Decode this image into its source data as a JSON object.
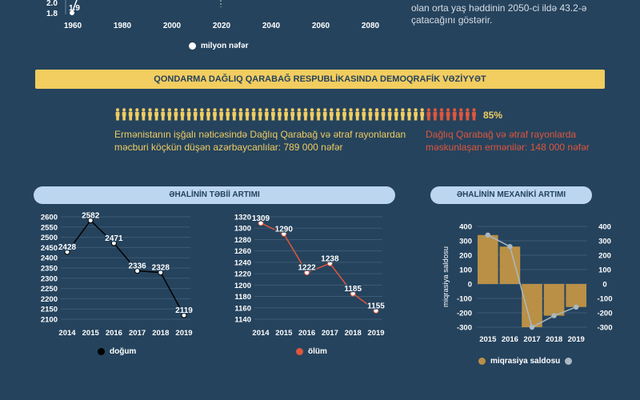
{
  "top": {
    "note": "olan orta yaş həddinin 2050-ci ildə 43.2-ə çatacağını göstərir.",
    "legend": "milyon nəfər",
    "legend_color": "#ffffff",
    "y_ticks": [
      "2.0",
      "1.8"
    ],
    "x_ticks": [
      "1960",
      "1980",
      "2000",
      "2020",
      "2040",
      "2060",
      "2080"
    ],
    "point_label": "1.9"
  },
  "demography": {
    "banner": "QONDARMA DAĞLIQ QARABAĞ RESPUBLİKASINDA DEMOQRAFİK VƏZİYYƏT",
    "percent": "85%",
    "yellow_text": "Ermənistanın işğalı nəticəsində Dağlıq Qarabağ və ətraf rayonlardan məcburi köçkün düşən azərbaycanlılar: 789 000 nəfər",
    "red_text": "Dağlıq Qarabağ və ətraf rayonlarda məskunlaşan ermənilər: 148 000 nəfər",
    "yellow_color": "#f0cc61",
    "red_color": "#e0563c",
    "yellow_share": 0.85
  },
  "natural": {
    "title": "ƏHALİNİN TƏBİİ ARTIMI",
    "births_legend": "doğum",
    "deaths_legend": "ölüm"
  },
  "mechanical": {
    "title": "ƏHALİNİN MEXANİKİ ARTIMI",
    "legend": "miqrasiya saldosu",
    "y_label": "miqrasiya saldosu"
  },
  "chart_data": [
    {
      "id": "births",
      "type": "line",
      "x": [
        "2014",
        "2015",
        "2016",
        "2017",
        "2018",
        "2019"
      ],
      "series": [
        {
          "name": "doğum",
          "values": [
            2428,
            2582,
            2471,
            2336,
            2328,
            2119
          ],
          "color": "#000000"
        }
      ],
      "ylim": [
        2100,
        2600
      ],
      "yticks": [
        2100,
        2150,
        2200,
        2250,
        2300,
        2350,
        2400,
        2450,
        2500,
        2550,
        2600
      ],
      "grid": true,
      "legend": "bottom"
    },
    {
      "id": "deaths",
      "type": "line",
      "x": [
        "2014",
        "2015",
        "2016",
        "2017",
        "2018",
        "2019"
      ],
      "series": [
        {
          "name": "ölüm",
          "values": [
            1309,
            1290,
            1222,
            1238,
            1185,
            1155
          ],
          "color": "#e0563c"
        }
      ],
      "ylim": [
        1140,
        1320
      ],
      "yticks": [
        1140,
        1160,
        1180,
        1200,
        1220,
        1240,
        1260,
        1280,
        1300,
        1320
      ],
      "grid": true,
      "legend": "bottom"
    },
    {
      "id": "migration",
      "type": "bar",
      "categories": [
        "2015",
        "2016",
        "2017",
        "2018",
        "2019"
      ],
      "series": [
        {
          "name": "miqrasiya saldosu",
          "values": [
            340,
            260,
            -300,
            -220,
            -160
          ],
          "color": "#b99046",
          "line_color": "#a9b8c4"
        }
      ],
      "ylim": [
        -300,
        400
      ],
      "yticks": [
        -300,
        -200,
        -100,
        0,
        100,
        200,
        300,
        400
      ],
      "grid": true,
      "legend": "bottom"
    }
  ]
}
